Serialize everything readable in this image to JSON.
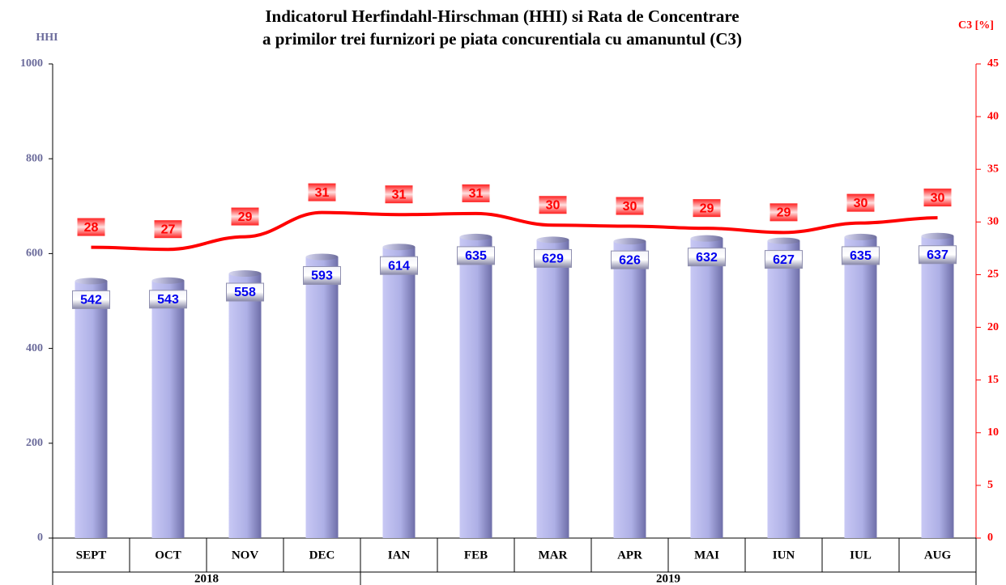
{
  "chart_data": {
    "type": "bar_line",
    "title": [
      "Indicatorul Herfindahl-Hirschman (HHI) si Rata de Concentrare",
      "a primilor trei furnizori pe piata concurentiala cu amanuntul (C3)"
    ],
    "ylabel": "HHI",
    "y2label": "C3 [%]",
    "categories": [
      "SEPT",
      "OCT",
      "NOV",
      "DEC",
      "IAN",
      "FEB",
      "MAR",
      "APR",
      "MAI",
      "IUN",
      "IUL",
      "AUG"
    ],
    "x_groups": [
      {
        "label": "2018",
        "count": 4
      },
      {
        "label": "2019",
        "count": 8
      }
    ],
    "series": [
      {
        "type": "bar",
        "color": "#9a9ad8",
        "values": [
          542,
          543,
          558,
          593,
          614,
          635,
          629,
          626,
          632,
          627,
          635,
          637
        ]
      },
      {
        "type": "line",
        "axis": "y2",
        "color": "#ff0000",
        "values": [
          27.6,
          27.4,
          28.6,
          30.9,
          30.7,
          30.8,
          29.7,
          29.6,
          29.4,
          29.0,
          29.9,
          30.4
        ],
        "value_labels": [
          "28",
          "27",
          "29",
          "31",
          "31",
          "31",
          "30",
          "30",
          "29",
          "29",
          "30",
          "30"
        ]
      }
    ],
    "ylim": [
      0,
      1000
    ],
    "yticks": [
      0,
      200,
      400,
      600,
      800,
      1000
    ],
    "y2lim": [
      0,
      45
    ],
    "y2ticks": [
      0,
      5,
      10,
      15,
      20,
      25,
      30,
      35,
      40,
      45
    ]
  }
}
